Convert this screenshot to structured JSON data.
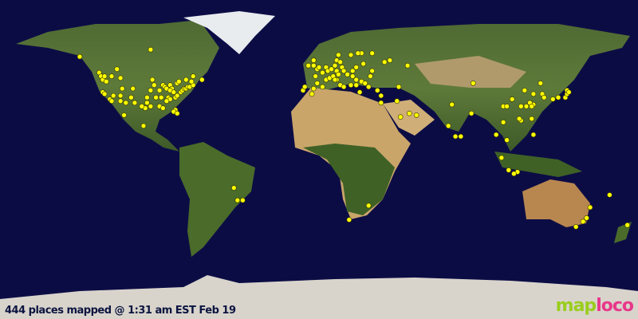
{
  "caption": "444 places mapped @ 1:31 am EST Feb 19",
  "logo": {
    "part1": "map",
    "part2": "loco"
  },
  "colors": {
    "ocean": "#0c0c45",
    "marker": "#ffff00",
    "logo_green": "#9acd1e",
    "logo_pink": "#e8388a"
  },
  "projection": "equirectangular",
  "markers": [
    [
      -135,
      58
    ],
    [
      -95,
      62
    ],
    [
      -124,
      49
    ],
    [
      -123,
      47
    ],
    [
      -122,
      45
    ],
    [
      -121,
      47
    ],
    [
      -117,
      47
    ],
    [
      -114,
      51
    ],
    [
      -112,
      46
    ],
    [
      -120,
      44
    ],
    [
      -122,
      38
    ],
    [
      -121,
      37
    ],
    [
      -118,
      34
    ],
    [
      -117,
      33
    ],
    [
      -112,
      33
    ],
    [
      -111,
      40
    ],
    [
      -105,
      40
    ],
    [
      -106,
      35
    ],
    [
      -112,
      36
    ],
    [
      -97,
      32
    ],
    [
      -95,
      30
    ],
    [
      -98,
      29
    ],
    [
      -90,
      30
    ],
    [
      -97,
      35
    ],
    [
      -95,
      39
    ],
    [
      -94,
      45
    ],
    [
      -93,
      42
    ],
    [
      -88,
      42
    ],
    [
      -87,
      41
    ],
    [
      -90,
      39
    ],
    [
      -86,
      40
    ],
    [
      -84,
      42
    ],
    [
      -83,
      40
    ],
    [
      -84,
      39
    ],
    [
      -82,
      38
    ],
    [
      -85,
      35
    ],
    [
      -84,
      34
    ],
    [
      -81,
      35
    ],
    [
      -80,
      36
    ],
    [
      -78,
      38
    ],
    [
      -77,
      39
    ],
    [
      -76,
      40
    ],
    [
      -75,
      40
    ],
    [
      -74,
      41
    ],
    [
      -73,
      41
    ],
    [
      -71,
      42
    ],
    [
      -72,
      44
    ],
    [
      -80,
      43
    ],
    [
      -79,
      44
    ],
    [
      -75,
      45
    ],
    [
      -81,
      28
    ],
    [
      -82,
      27
    ],
    [
      -80,
      26
    ],
    [
      -86,
      33
    ],
    [
      -89,
      35
    ],
    [
      -92,
      35
    ],
    [
      -100,
      30
    ],
    [
      -104,
      32
    ],
    [
      -109,
      32
    ],
    [
      -116,
      36
    ],
    [
      -110,
      25
    ],
    [
      -99,
      19
    ],
    [
      -88,
      29
    ],
    [
      -71,
      47
    ],
    [
      -66,
      45
    ],
    [
      -48,
      -16
    ],
    [
      -43,
      -23
    ],
    [
      -46,
      -23
    ],
    [
      -9,
      39
    ],
    [
      -8,
      41
    ],
    [
      -3,
      40
    ],
    [
      -4,
      37
    ],
    [
      2,
      41
    ],
    [
      -1,
      43
    ],
    [
      2,
      49
    ],
    [
      -2,
      47
    ],
    [
      4,
      45
    ],
    [
      6,
      46
    ],
    [
      8,
      47
    ],
    [
      10,
      45
    ],
    [
      12,
      42
    ],
    [
      14,
      41
    ],
    [
      9,
      45
    ],
    [
      -3,
      53
    ],
    [
      -1,
      51
    ],
    [
      -6,
      53
    ],
    [
      -3,
      56
    ],
    [
      0,
      52
    ],
    [
      4,
      52
    ],
    [
      5,
      50
    ],
    [
      7,
      51
    ],
    [
      9,
      53
    ],
    [
      10,
      50
    ],
    [
      13,
      52
    ],
    [
      11,
      48
    ],
    [
      14,
      50
    ],
    [
      16,
      48
    ],
    [
      19,
      47
    ],
    [
      21,
      52
    ],
    [
      19,
      50
    ],
    [
      25,
      54
    ],
    [
      24,
      60
    ],
    [
      18,
      59
    ],
    [
      11,
      59
    ],
    [
      10,
      56
    ],
    [
      12,
      55
    ],
    [
      22,
      60
    ],
    [
      30,
      60
    ],
    [
      37,
      55
    ],
    [
      30,
      50
    ],
    [
      24,
      44
    ],
    [
      26,
      43
    ],
    [
      21,
      42
    ],
    [
      23,
      38
    ],
    [
      28,
      41
    ],
    [
      33,
      39
    ],
    [
      35,
      36
    ],
    [
      35,
      32
    ],
    [
      45,
      41
    ],
    [
      44,
      33
    ],
    [
      46,
      24
    ],
    [
      55,
      25
    ],
    [
      51,
      26
    ],
    [
      40,
      56
    ],
    [
      50,
      53
    ],
    [
      18,
      42
    ],
    [
      29,
      47
    ],
    [
      21,
      45
    ],
    [
      17,
      -34
    ],
    [
      28,
      -26
    ],
    [
      73,
      19
    ],
    [
      77,
      13
    ],
    [
      80,
      13
    ],
    [
      86,
      26
    ],
    [
      75,
      31
    ],
    [
      87,
      43
    ],
    [
      100,
      14
    ],
    [
      104,
      21
    ],
    [
      106,
      11
    ],
    [
      103,
      1
    ],
    [
      107,
      -6
    ],
    [
      112,
      -7
    ],
    [
      110,
      -8
    ],
    [
      121,
      14
    ],
    [
      120,
      23
    ],
    [
      114,
      22
    ],
    [
      113,
      23
    ],
    [
      117,
      30
    ],
    [
      121,
      31
    ],
    [
      119,
      32
    ],
    [
      116,
      39
    ],
    [
      121,
      37
    ],
    [
      126,
      37
    ],
    [
      127,
      35
    ],
    [
      114,
      30
    ],
    [
      109,
      34
    ],
    [
      104,
      30
    ],
    [
      125,
      43
    ],
    [
      106,
      30
    ],
    [
      132,
      34
    ],
    [
      135,
      35
    ],
    [
      139,
      35
    ],
    [
      140,
      37
    ],
    [
      140,
      39
    ],
    [
      141,
      38
    ],
    [
      120,
      30
    ],
    [
      164,
      -20
    ],
    [
      151,
      -33
    ],
    [
      149,
      -35
    ],
    [
      145,
      -38
    ],
    [
      153,
      -27
    ],
    [
      174,
      -37
    ]
  ]
}
